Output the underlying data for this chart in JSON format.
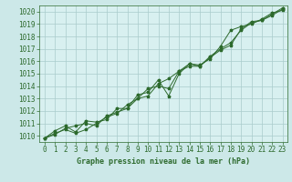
{
  "title": "Graphe pression niveau de la mer (hPa)",
  "bg_color": "#cce8e8",
  "plot_bg_color": "#d8f0f0",
  "grid_color": "#aacccc",
  "line_color": "#2d6a2d",
  "xlim": [
    -0.5,
    23.5
  ],
  "ylim": [
    1009.5,
    1020.5
  ],
  "xticks": [
    0,
    1,
    2,
    3,
    4,
    5,
    6,
    7,
    8,
    9,
    10,
    11,
    12,
    13,
    14,
    15,
    16,
    17,
    18,
    19,
    20,
    21,
    22,
    23
  ],
  "yticks": [
    1010,
    1011,
    1012,
    1013,
    1014,
    1015,
    1016,
    1017,
    1018,
    1019,
    1020
  ],
  "series1": [
    1009.8,
    1010.2,
    1010.5,
    1010.2,
    1010.5,
    1011.0,
    1011.5,
    1011.8,
    1012.5,
    1013.0,
    1013.2,
    1014.2,
    1014.6,
    1015.2,
    1015.6,
    1015.6,
    1016.4,
    1017.0,
    1017.5,
    1018.5,
    1019.1,
    1019.3,
    1019.8,
    1020.3
  ],
  "series2": [
    1009.8,
    1010.4,
    1010.8,
    1010.3,
    1011.2,
    1011.1,
    1011.3,
    1012.2,
    1012.2,
    1013.3,
    1013.5,
    1014.5,
    1013.2,
    1015.0,
    1015.8,
    1015.7,
    1016.2,
    1017.2,
    1018.5,
    1018.8,
    1019.0,
    1019.4,
    1019.9,
    1020.1
  ],
  "series3": [
    1009.8,
    1010.1,
    1010.6,
    1010.8,
    1011.0,
    1010.8,
    1011.6,
    1011.9,
    1012.2,
    1013.0,
    1013.8,
    1014.0,
    1013.8,
    1015.2,
    1015.8,
    1015.6,
    1016.3,
    1016.9,
    1017.3,
    1018.6,
    1019.2,
    1019.3,
    1019.7,
    1020.2
  ],
  "tick_fontsize": 5.5,
  "label_fontsize": 6.0,
  "figsize": [
    3.2,
    2.0
  ],
  "dpi": 100
}
